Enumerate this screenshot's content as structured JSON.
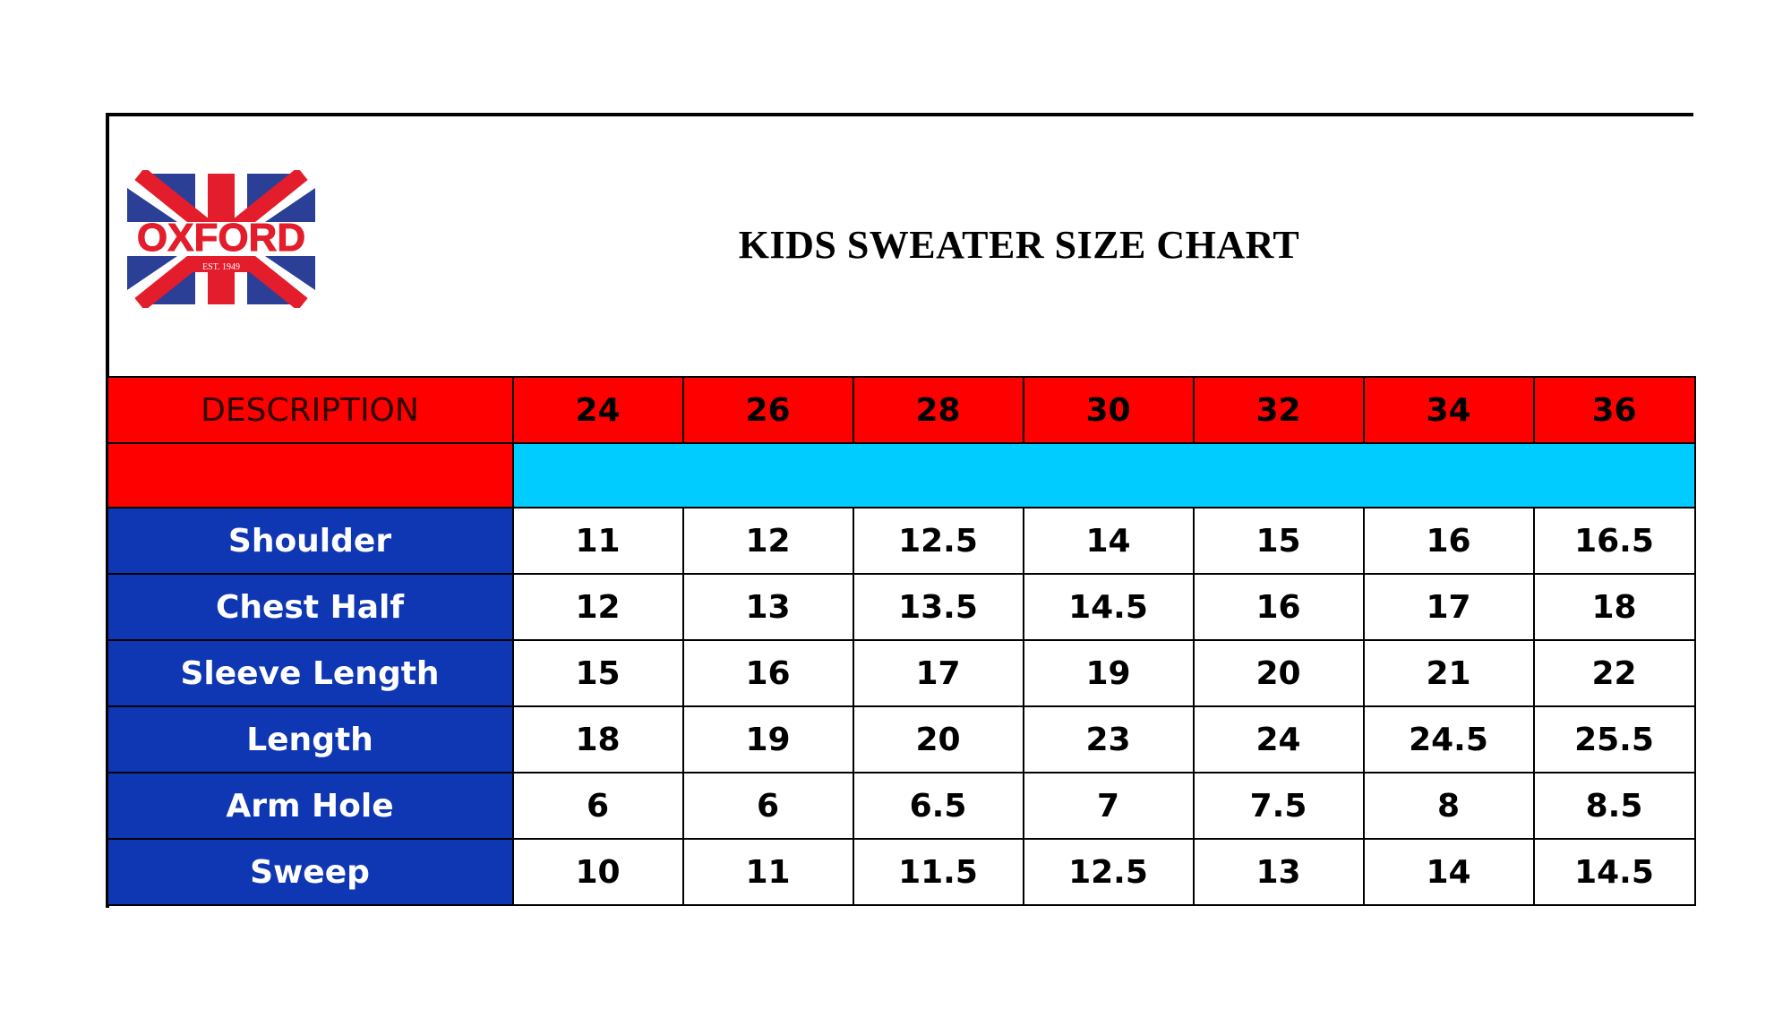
{
  "brand": {
    "name": "OXFORD",
    "established": "EST. 1949",
    "colors": {
      "red": "#e31d2b",
      "blue": "#2b3f96",
      "white": "#ffffff"
    }
  },
  "title": "KIDS SWEATER SIZE CHART",
  "table": {
    "header_label": "DESCRIPTION",
    "sizes": [
      "24",
      "26",
      "28",
      "30",
      "32",
      "34",
      "36"
    ],
    "rows": [
      {
        "label": "Shoulder",
        "values": [
          "11",
          "12",
          "12.5",
          "14",
          "15",
          "16",
          "16.5"
        ]
      },
      {
        "label": "Chest Half",
        "values": [
          "12",
          "13",
          "13.5",
          "14.5",
          "16",
          "17",
          "18"
        ]
      },
      {
        "label": "Sleeve Length",
        "values": [
          "15",
          "16",
          "17",
          "19",
          "20",
          "21",
          "22"
        ]
      },
      {
        "label": "Length",
        "values": [
          "18",
          "19",
          "20",
          "23",
          "24",
          "24.5",
          "25.5"
        ]
      },
      {
        "label": "Arm Hole",
        "values": [
          "6",
          "6",
          "6.5",
          "7",
          "7.5",
          "8",
          "8.5"
        ]
      },
      {
        "label": "Sweep",
        "values": [
          "10",
          "11",
          "11.5",
          "12.5",
          "13",
          "14",
          "14.5"
        ]
      }
    ],
    "colors": {
      "header": "#ff0000",
      "label_column": "#0f37b3",
      "sub_band": "#00ccff"
    }
  }
}
